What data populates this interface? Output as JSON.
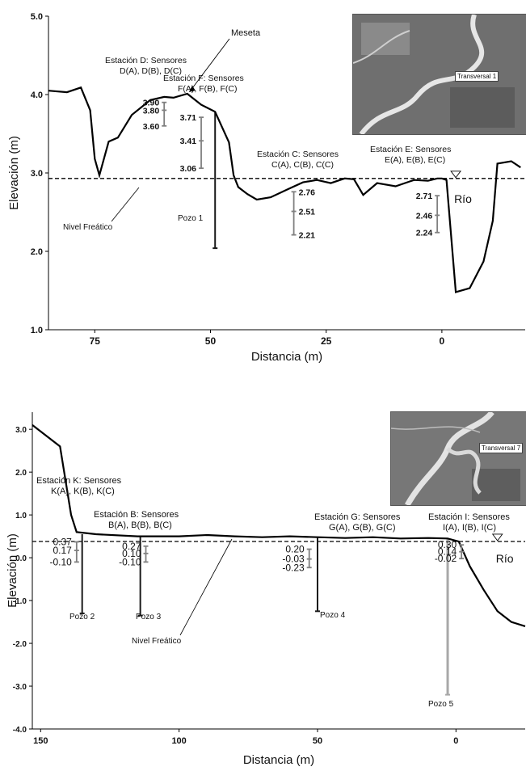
{
  "colors": {
    "axis": "#000000",
    "profile": "#000000",
    "sensor_gray": "#808080",
    "well_dark": "#1a1a1a",
    "well_light": "#a8a8a8"
  },
  "chart_data": [
    {
      "type": "line",
      "xlabel": "Distancia (m)",
      "ylabel": "Elevación (m)",
      "x_reversed": true,
      "xlim": [
        85,
        -18
      ],
      "ylim": [
        1.0,
        5.0
      ],
      "x_ticks": [
        75,
        50,
        25,
        0
      ],
      "y_ticks": [
        1.0,
        2.0,
        3.0,
        4.0,
        5.0
      ],
      "y_tick_labels": [
        "1.0",
        "2.0",
        "3.0",
        "4.0",
        "5.0"
      ],
      "grid": false,
      "inset_label": "Transversal 1",
      "series": [
        {
          "x": [
            85,
            81,
            78,
            76,
            75,
            74,
            72,
            70,
            67,
            63,
            60,
            58,
            55,
            52,
            49,
            46,
            45,
            44,
            42,
            40,
            37,
            33,
            30,
            27,
            24,
            21,
            19,
            17,
            14,
            10,
            6,
            3,
            1,
            0,
            -1,
            -3,
            -6,
            -9,
            -11,
            -12,
            -15,
            -17
          ],
          "y": [
            4.05,
            4.03,
            4.09,
            3.8,
            3.18,
            2.97,
            3.4,
            3.45,
            3.74,
            3.93,
            3.97,
            3.96,
            4.01,
            3.87,
            3.78,
            3.39,
            2.97,
            2.82,
            2.73,
            2.66,
            2.69,
            2.8,
            2.88,
            2.91,
            2.87,
            2.93,
            2.92,
            2.72,
            2.87,
            2.83,
            2.91,
            2.9,
            2.93,
            2.93,
            2.91,
            1.48,
            1.53,
            1.87,
            2.39,
            3.12,
            3.15,
            3.07
          ]
        }
      ],
      "water_table": {
        "label": "Nivel Freático",
        "y": 2.93
      },
      "river": {
        "label": "Río",
        "x": -3
      },
      "stations": [
        {
          "title": "Estación D: Sensores",
          "sensors": "D(A), D(B), D(C)",
          "x": 60,
          "values": [
            3.9,
            3.8,
            3.6
          ],
          "labels": [
            "3.90",
            "3.80",
            "3.60"
          ]
        },
        {
          "title": "Estación F: Sensores",
          "sensors": "F(A), F(B), F(C)",
          "x": 52,
          "values": [
            3.71,
            3.41,
            3.06
          ],
          "labels": [
            "3.71",
            "3.41",
            "3.06"
          ]
        },
        {
          "title": "Estación C: Sensores",
          "sensors": "C(A), C(B), C(C)",
          "x": 32,
          "values": [
            2.76,
            2.51,
            2.21
          ],
          "labels": [
            "2.76",
            "2.51",
            "2.21"
          ]
        },
        {
          "title": "Estación E: Sensores",
          "sensors": "E(A), E(B), E(C)",
          "x": 1,
          "values": [
            2.71,
            2.46,
            2.24
          ],
          "labels": [
            "2.71",
            "2.46",
            "2.24"
          ]
        }
      ],
      "wells": [
        {
          "label": "Pozo 1",
          "x": 49,
          "top": 3.78,
          "bottom": 2.04
        }
      ],
      "annotations": [
        {
          "text": "Meseta",
          "target_x": 55,
          "target_y": 4.01
        }
      ]
    },
    {
      "type": "line",
      "xlabel": "Distancia (m)",
      "ylabel": "Elevación (m)",
      "x_reversed": true,
      "xlim": [
        153,
        -25
      ],
      "ylim": [
        -4.0,
        3.4
      ],
      "x_ticks": [
        150,
        100,
        50,
        0
      ],
      "y_ticks": [
        -4.0,
        -3.0,
        -2.0,
        -1.0,
        0.0,
        1.0,
        2.0,
        3.0
      ],
      "y_tick_labels": [
        "-4.0",
        "-3.0",
        "-2.0",
        "-1.0",
        "0.0",
        "1.0",
        "2.0",
        "3.0"
      ],
      "grid": false,
      "inset_label": "Transversal 7",
      "series": [
        {
          "x": [
            153,
            143,
            139,
            137,
            130,
            115,
            100,
            90,
            80,
            70,
            60,
            50,
            40,
            30,
            20,
            10,
            3,
            -1,
            -5,
            -10,
            -15,
            -20,
            -25
          ],
          "y": [
            3.1,
            2.6,
            1.0,
            0.6,
            0.55,
            0.5,
            0.5,
            0.53,
            0.5,
            0.48,
            0.5,
            0.48,
            0.46,
            0.48,
            0.45,
            0.46,
            0.45,
            0.38,
            -0.2,
            -0.75,
            -1.25,
            -1.5,
            -1.6
          ]
        }
      ],
      "water_table": {
        "label": "Nivel Freático",
        "y": 0.38
      },
      "river": {
        "label": "Río",
        "x": -15
      },
      "stations": [
        {
          "title": "Estación K: Sensores",
          "sensors": "K(A), K(B), K(C)",
          "x": 137,
          "values": [
            0.37,
            0.17,
            -0.1
          ],
          "labels": [
            "0.37",
            "0.17",
            "-0.10"
          ]
        },
        {
          "title": "Estación B: Sensores",
          "sensors": "B(A), B(B), B(C)",
          "x": 112,
          "values": [
            0.27,
            0.1,
            -0.1
          ],
          "labels": [
            "0.27",
            "0.10",
            "-0.10"
          ]
        },
        {
          "title": "Estación G: Sensores",
          "sensors": "G(A), G(B), G(C)",
          "x": 53,
          "values": [
            0.2,
            -0.03,
            -0.23
          ],
          "labels": [
            "0.20",
            "-0.03",
            "-0.23"
          ]
        },
        {
          "title": "Estación I: Sensores",
          "sensors": "I(A), I(B), I(C)",
          "x": -2,
          "values": [
            0.3,
            0.14,
            -0.02
          ],
          "labels": [
            "0.30",
            "0.14",
            "-0.02"
          ]
        }
      ],
      "wells": [
        {
          "label": "Pozo 2",
          "x": 135,
          "top": 0.55,
          "bottom": -1.3
        },
        {
          "label": "Pozo 3",
          "x": 114,
          "top": 0.5,
          "bottom": -1.35
        },
        {
          "label": "Pozo 4",
          "x": 50,
          "top": 0.48,
          "bottom": -1.25
        },
        {
          "label": "Pozo 5",
          "x": 3,
          "top": 0.45,
          "bottom": -3.2
        }
      ],
      "annotations": []
    }
  ]
}
